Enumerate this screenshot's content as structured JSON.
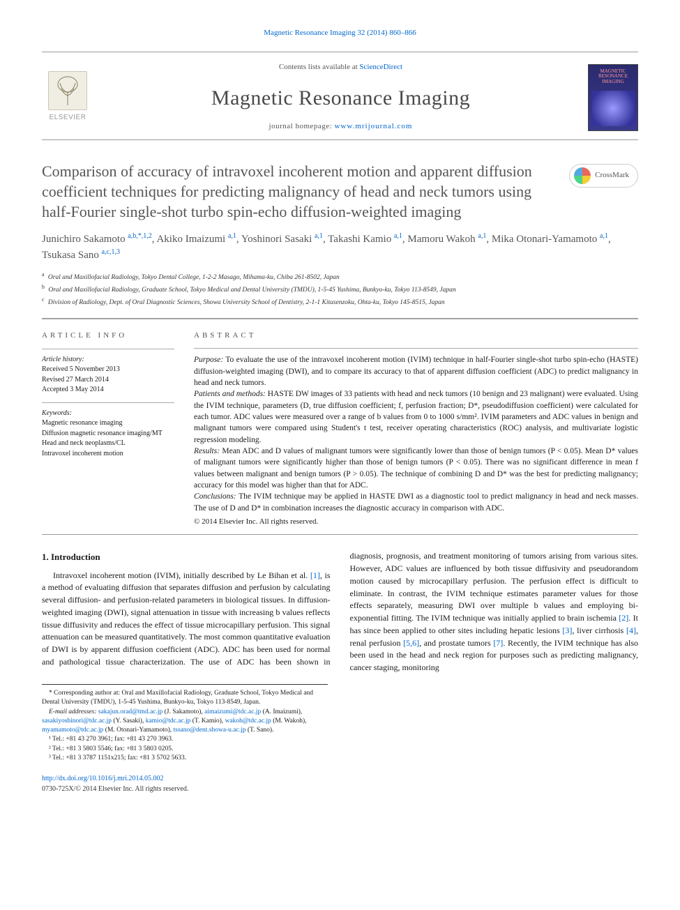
{
  "citation": {
    "journal_link": "Magnetic Resonance Imaging 32 (2014) 860–866",
    "journal_link_color": "#0066cc"
  },
  "masthead": {
    "contents_prefix": "Contents lists available at ",
    "contents_link": "ScienceDirect",
    "journal_name": "Magnetic Resonance Imaging",
    "homepage_prefix": "journal homepage: ",
    "homepage_url": "www.mrijournal.com",
    "elsevier_brand": "ELSEVIER",
    "cover_title": "MAGNETIC RESONANCE IMAGING"
  },
  "crossmark_label": "CrossMark",
  "title": "Comparison of accuracy of intravoxel incoherent motion and apparent diffusion coefficient techniques for predicting malignancy of head and neck tumors using half-Fourier single-shot turbo spin-echo diffusion-weighted imaging",
  "authors_html": "Junichiro Sakamoto <sup>a,b,*,1,2</sup>, Akiko Imaizumi <sup>a,1</sup>, Yoshinori Sasaki <sup>a,1</sup>, Takashi Kamio <sup>a,1</sup>, Mamoru Wakoh <sup>a,1</sup>, Mika Otonari-Yamamoto <sup>a,1</sup>, Tsukasa Sano <sup>a,c,1,3</sup>",
  "affiliations": [
    {
      "mark": "a",
      "text": "Oral and Maxillofacial Radiology, Tokyo Dental College, 1-2-2 Masago, Mihama-ku, Chiba 261-8502, Japan"
    },
    {
      "mark": "b",
      "text": "Oral and Maxillofacial Radiology, Graduate School, Tokyo Medical and Dental University (TMDU), 1-5-45 Yushima, Bunkyo-ku, Tokyo 113-8549, Japan"
    },
    {
      "mark": "c",
      "text": "Division of Radiology, Dept. of Oral Diagnostic Sciences, Showa University School of Dentistry, 2-1-1 Kitasenzoku, Ohta-ku, Tokyo 145-8515, Japan"
    }
  ],
  "info": {
    "heading": "ARTICLE INFO",
    "history_label": "Article history:",
    "history": [
      "Received 5 November 2013",
      "Revised 27 March 2014",
      "Accepted 3 May 2014"
    ],
    "keywords_label": "Keywords:",
    "keywords": [
      "Magnetic resonance imaging",
      "Diffusion magnetic resonance imaging/MT",
      "Head and neck neoplasms/CL",
      "Intravoxel incoherent motion"
    ]
  },
  "abstract": {
    "heading": "ABSTRACT",
    "purpose_label": "Purpose:",
    "purpose": "To evaluate the use of the intravoxel incoherent motion (IVIM) technique in half-Fourier single-shot turbo spin-echo (HASTE) diffusion-weighted imaging (DWI), and to compare its accuracy to that of apparent diffusion coefficient (ADC) to predict malignancy in head and neck tumors.",
    "patients_label": "Patients and methods:",
    "patients": "HASTE DW images of 33 patients with head and neck tumors (10 benign and 23 malignant) were evaluated. Using the IVIM technique, parameters (D, true diffusion coefficient; f, perfusion fraction; D*, pseudodiffusion coefficient) were calculated for each tumor. ADC values were measured over a range of b values from 0 to 1000 s/mm². IVIM parameters and ADC values in benign and malignant tumors were compared using Student's t test, receiver operating characteristics (ROC) analysis, and multivariate logistic regression modeling.",
    "results_label": "Results:",
    "results": "Mean ADC and D values of malignant tumors were significantly lower than those of benign tumors (P < 0.05). Mean D* values of malignant tumors were significantly higher than those of benign tumors (P < 0.05). There was no significant difference in mean f values between malignant and benign tumors (P > 0.05). The technique of combining D and D* was the best for predicting malignancy; accuracy for this model was higher than that for ADC.",
    "conclusions_label": "Conclusions:",
    "conclusions": "The IVIM technique may be applied in HASTE DWI as a diagnostic tool to predict malignancy in head and neck masses. The use of D and D* in combination increases the diagnostic accuracy in comparison with ADC.",
    "copyright": "© 2014 Elsevier Inc. All rights reserved."
  },
  "section": {
    "heading": "1. Introduction",
    "para1_pre": "Intravoxel incoherent motion (IVIM), initially described by Le Bihan et al. ",
    "ref1": "[1]",
    "para1_post": ", is a method of evaluating diffusion that separates diffusion and perfusion by calculating several diffusion- and perfusion-related parameters in biological tissues. In diffusion-weighted imaging (DWI), signal attenuation in tissue with increasing",
    "para2_a": "b values reflects tissue diffusivity and reduces the effect of tissue microcapillary perfusion. This signal attenuation can be measured quantitatively. The most common quantitative evaluation of DWI is by apparent diffusion coefficient (ADC). ADC has been used for normal and pathological tissue characterization. The use of ADC has been shown in diagnosis, prognosis, and treatment monitoring of tumors arising from various sites. However, ADC values are influenced by both tissue diffusivity and pseudorandom motion caused by microcapillary perfusion. The perfusion effect is difficult to eliminate. In contrast, the IVIM technique estimates parameter values for those effects separately, measuring DWI over multiple b values and employing bi-exponential fitting. The IVIM technique was initially applied to brain ischemia ",
    "ref2": "[2]",
    "para2_b": ". It has since been applied to other sites including hepatic lesions ",
    "ref3": "[3]",
    "para2_c": ", liver cirrhosis ",
    "ref4": "[4]",
    "para2_d": ", renal perfusion ",
    "ref56": "[5,6]",
    "para2_e": ", and prostate tumors ",
    "ref7": "[7]",
    "para2_f": ". Recently, the IVIM technique has also been used in the head and neck region for purposes such as predicting malignancy, cancer staging, monitoring"
  },
  "footnotes": {
    "corr": "* Corresponding author at: Oral and Maxillofacial Radiology, Graduate School, Tokyo Medical and Dental University (TMDU), 1-5-45 Yushima, Bunkyo-ku, Tokyo 113-8549, Japan.",
    "email_label": "E-mail addresses:",
    "emails": [
      {
        "addr": "sakajun.orad@tmd.ac.jp",
        "who": "(J. Sakamoto)"
      },
      {
        "addr": "aimaizumi@tdc.ac.jp",
        "who": "(A. Imaizumi)"
      },
      {
        "addr": "sasakiyoshinori@tdc.ac.jp",
        "who": "(Y. Sasaki)"
      },
      {
        "addr": "kamio@tdc.ac.jp",
        "who": "(T. Kamio)"
      },
      {
        "addr": "wakoh@tdc.ac.jp",
        "who": "(M. Wakoh)"
      },
      {
        "addr": "myamamoto@tdc.ac.jp",
        "who": "(M. Otonari-Yamamoto)"
      },
      {
        "addr": "tssano@dent.showa-u.ac.jp",
        "who": "(T. Sano)"
      }
    ],
    "tels": [
      "¹ Tel.: +81 43 270 3961; fax: +81 43 270 3963.",
      "² Tel.: +81 3 5803 5546; fax: +81 3 5803 0205.",
      "³ Tel.: +81 3 3787 1151x215; fax: +81 3 5702 5633."
    ]
  },
  "footer": {
    "doi": "http://dx.doi.org/10.1016/j.mri.2014.05.002",
    "issn": "0730-725X/© 2014 Elsevier Inc. All rights reserved."
  },
  "colors": {
    "link": "#0066cc",
    "title_gray": "#555555",
    "rule": "#aaaaaa"
  }
}
